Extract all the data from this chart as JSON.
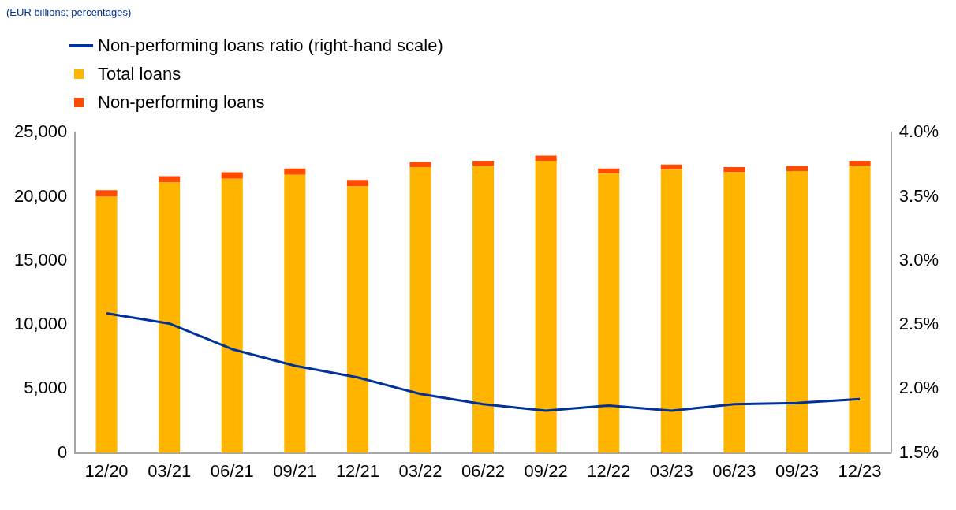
{
  "chart_data": {
    "type": "bar",
    "subtitle": "(EUR billions; percentages)",
    "categories": [
      "12/20",
      "03/21",
      "06/21",
      "09/21",
      "12/21",
      "03/22",
      "06/22",
      "09/22",
      "12/22",
      "03/23",
      "06/23",
      "09/23",
      "12/23"
    ],
    "series": [
      {
        "name": "Non-performing loans ratio (right-hand scale)",
        "type": "line",
        "axis": "y2",
        "color": "#003299",
        "values": [
          2.59,
          2.51,
          2.31,
          2.18,
          2.09,
          1.96,
          1.88,
          1.83,
          1.87,
          1.83,
          1.88,
          1.89,
          1.92
        ]
      },
      {
        "name": "Total loans",
        "color": "#ffb400",
        "values": [
          20000,
          21100,
          21400,
          21700,
          20800,
          22300,
          22400,
          22800,
          21800,
          22100,
          21900,
          22000,
          22400
        ]
      },
      {
        "name": "Non-performing loans",
        "color": "#ff4b00",
        "values": [
          500,
          500,
          500,
          500,
          500,
          400,
          400,
          400,
          400,
          400,
          400,
          400,
          400
        ]
      }
    ],
    "stacked": true,
    "legend": "top left",
    "grid": false,
    "ylim": [
      0,
      25000
    ],
    "yticks": [
      0,
      {
        "value": 5000,
        "label": "5,000"
      },
      {
        "value": 10000,
        "label": "10,000"
      },
      {
        "value": 15000,
        "label": "15,000"
      },
      {
        "value": 20000,
        "label": "20,000"
      },
      {
        "value": 25000,
        "label": "25,000"
      }
    ],
    "y2lim": [
      1.5,
      4.0
    ],
    "y2ticks": [
      {
        "value": 1.5,
        "label": "1.5%"
      },
      {
        "value": 2.0,
        "label": "2.0%"
      },
      {
        "value": 2.5,
        "label": "2.5%"
      },
      {
        "value": 3.0,
        "label": "3.0%"
      },
      {
        "value": 3.5,
        "label": "3.5%"
      },
      {
        "value": 4.0,
        "label": "4.0%"
      }
    ]
  }
}
